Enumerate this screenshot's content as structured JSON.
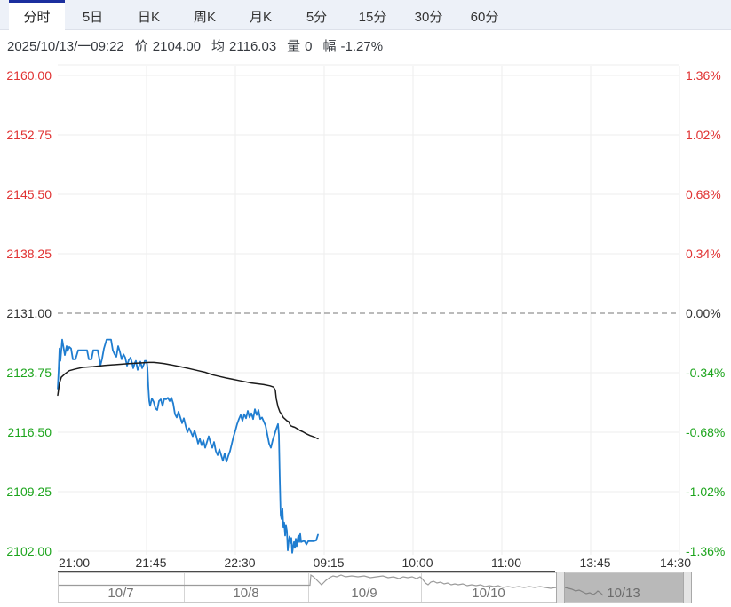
{
  "tab_bar": {
    "tabs": [
      {
        "label": "分时",
        "active": true
      },
      {
        "label": "5日",
        "active": false
      },
      {
        "label": "日K",
        "active": false
      },
      {
        "label": "周K",
        "active": false
      },
      {
        "label": "月K",
        "active": false
      },
      {
        "label": "5分",
        "active": false
      },
      {
        "label": "15分",
        "active": false
      },
      {
        "label": "30分",
        "active": false
      },
      {
        "label": "60分",
        "active": false
      }
    ]
  },
  "status_bar": {
    "datetime": "2025/10/13/一09:22",
    "price_label": "价",
    "price": "2104.00",
    "avg_label": "均",
    "avg": "2116.03",
    "volume_label": "量",
    "volume": "0",
    "change_label": "幅",
    "change": "-1.27%"
  },
  "chart_data": {
    "type": "line",
    "title": "",
    "x_tick_labels": [
      "21:00",
      "21:45",
      "22:30",
      "09:15",
      "10:00",
      "11:00",
      "13:45",
      "14:30"
    ],
    "y_left_tick_labels": [
      "2160.00",
      "2152.75",
      "2145.50",
      "2138.25",
      "2131.00",
      "2123.75",
      "2116.50",
      "2109.25",
      "2102.00"
    ],
    "y_left_tick_values": [
      2160.0,
      2152.75,
      2145.5,
      2138.25,
      2131.0,
      2123.75,
      2116.5,
      2109.25,
      2102.0
    ],
    "y_right_tick_labels": [
      "1.36%",
      "1.02%",
      "0.68%",
      "0.34%",
      "0.00%",
      "-0.34%",
      "-0.68%",
      "-1.02%",
      "-1.36%"
    ],
    "ylim": [
      2102,
      2160
    ],
    "baseline_value": 2131.0,
    "grid": true,
    "legend": "none",
    "x_unit": "plot-pixel-offset (time axis is session-compressed, 0 = 21:00, 700 = 14:30)",
    "colors": {
      "above_baseline": "#e03232",
      "below_baseline": "#1ea51e",
      "neutral": "#333333",
      "price_line": "#1f7dd0",
      "avg_line": "#1b1b1b",
      "grid_line": "#ededed",
      "baseline_dash": "#777777"
    },
    "series": [
      {
        "name": "price",
        "color": "#1f7dd0",
        "width": 1.8,
        "points": [
          [
            0,
            2121.8
          ],
          [
            1,
            2124.0
          ],
          [
            2,
            2126.7
          ],
          [
            3,
            2125.2
          ],
          [
            5,
            2127.8
          ],
          [
            8,
            2125.9
          ],
          [
            10,
            2127.0
          ],
          [
            11,
            2126.4
          ],
          [
            13,
            2126.9
          ],
          [
            15,
            2126.7
          ],
          [
            17,
            2125.4
          ],
          [
            20,
            2125.4
          ],
          [
            23,
            2126.5
          ],
          [
            26,
            2126.5
          ],
          [
            30,
            2126.5
          ],
          [
            33,
            2126.5
          ],
          [
            35,
            2125.4
          ],
          [
            38,
            2125.4
          ],
          [
            40,
            2126.5
          ],
          [
            43,
            2126.5
          ],
          [
            45,
            2126.5
          ],
          [
            47,
            2125.4
          ],
          [
            48,
            2124.6
          ],
          [
            50,
            2125.5
          ],
          [
            52,
            2126.7
          ],
          [
            55,
            2127.8
          ],
          [
            58,
            2127.8
          ],
          [
            60,
            2127.8
          ],
          [
            62,
            2126.5
          ],
          [
            64,
            2126.0
          ],
          [
            66,
            2125.7
          ],
          [
            68,
            2127.0
          ],
          [
            70,
            2126.3
          ],
          [
            72,
            2125.4
          ],
          [
            74,
            2126.0
          ],
          [
            76,
            2125.6
          ],
          [
            78,
            2124.6
          ],
          [
            80,
            2125.3
          ],
          [
            82,
            2125.6
          ],
          [
            84,
            2124.8
          ],
          [
            85,
            2124.3
          ],
          [
            87,
            2125.0
          ],
          [
            88,
            2125.2
          ],
          [
            90,
            2124.1
          ],
          [
            92,
            2124.7
          ],
          [
            93,
            2125.1
          ],
          [
            95,
            2124.3
          ],
          [
            97,
            2124.8
          ],
          [
            98,
            2125.2
          ],
          [
            100,
            2125.2
          ],
          [
            101,
            2124.4
          ],
          [
            102,
            2122.0
          ],
          [
            103,
            2120.3
          ],
          [
            104,
            2119.7
          ],
          [
            106,
            2120.6
          ],
          [
            108,
            2120.2
          ],
          [
            110,
            2119.4
          ],
          [
            112,
            2119.2
          ],
          [
            114,
            2120.3
          ],
          [
            116,
            2120.5
          ],
          [
            118,
            2119.7
          ],
          [
            120,
            2120.6
          ],
          [
            122,
            2120.5
          ],
          [
            124,
            2120.7
          ],
          [
            126,
            2120.3
          ],
          [
            128,
            2120.7
          ],
          [
            130,
            2120.0
          ],
          [
            132,
            2118.7
          ],
          [
            134,
            2118.3
          ],
          [
            136,
            2119.0
          ],
          [
            138,
            2118.3
          ],
          [
            140,
            2117.6
          ],
          [
            142,
            2118.2
          ],
          [
            144,
            2117.3
          ],
          [
            146,
            2116.5
          ],
          [
            148,
            2117.0
          ],
          [
            150,
            2116.5
          ],
          [
            152,
            2116.0
          ],
          [
            154,
            2116.7
          ],
          [
            156,
            2116.0
          ],
          [
            158,
            2115.1
          ],
          [
            160,
            2115.7
          ],
          [
            162,
            2114.9
          ],
          [
            164,
            2115.5
          ],
          [
            166,
            2114.6
          ],
          [
            168,
            2115.3
          ],
          [
            170,
            2116.0
          ],
          [
            172,
            2115.2
          ],
          [
            174,
            2114.6
          ],
          [
            176,
            2115.3
          ],
          [
            178,
            2114.2
          ],
          [
            180,
            2113.7
          ],
          [
            182,
            2114.4
          ],
          [
            184,
            2113.7
          ],
          [
            186,
            2113.0
          ],
          [
            188,
            2113.9
          ],
          [
            190,
            2112.9
          ],
          [
            192,
            2113.6
          ],
          [
            194,
            2114.2
          ],
          [
            196,
            2115.1
          ],
          [
            198,
            2116.0
          ],
          [
            200,
            2116.7
          ],
          [
            202,
            2117.5
          ],
          [
            204,
            2118.1
          ],
          [
            206,
            2118.6
          ],
          [
            208,
            2117.9
          ],
          [
            210,
            2118.7
          ],
          [
            212,
            2118.2
          ],
          [
            214,
            2119.1
          ],
          [
            216,
            2118.3
          ],
          [
            218,
            2118.8
          ],
          [
            220,
            2118.1
          ],
          [
            222,
            2119.3
          ],
          [
            224,
            2118.6
          ],
          [
            226,
            2119.2
          ],
          [
            228,
            2118.1
          ],
          [
            230,
            2118.3
          ],
          [
            232,
            2117.8
          ],
          [
            234,
            2117.3
          ],
          [
            236,
            2116.2
          ],
          [
            238,
            2115.1
          ],
          [
            240,
            2114.6
          ],
          [
            242,
            2115.5
          ],
          [
            244,
            2116.2
          ],
          [
            246,
            2116.9
          ],
          [
            248,
            2117.5
          ],
          [
            249,
            2116.2
          ],
          [
            250,
            2110.8
          ],
          [
            251,
            2106.4
          ],
          [
            252,
            2105.9
          ],
          [
            253,
            2107.2
          ],
          [
            254,
            2104.9
          ],
          [
            255,
            2105.5
          ],
          [
            256,
            2103.9
          ],
          [
            257,
            2105.1
          ],
          [
            258,
            2104.5
          ],
          [
            259,
            2102.1
          ],
          [
            260,
            2103.2
          ],
          [
            261,
            2103.8
          ],
          [
            262,
            2103.0
          ],
          [
            263,
            2103.6
          ],
          [
            264,
            2101.8
          ],
          [
            265,
            2102.5
          ],
          [
            266,
            2103.1
          ],
          [
            267,
            2102.4
          ],
          [
            268,
            2103.5
          ],
          [
            269,
            2102.6
          ],
          [
            270,
            2103.4
          ],
          [
            271,
            2103.9
          ],
          [
            272,
            2103.1
          ],
          [
            273,
            2104.1
          ],
          [
            274,
            2103.1
          ],
          [
            276,
            2103.2
          ],
          [
            278,
            2103.2
          ],
          [
            280,
            2102.8
          ],
          [
            282,
            2103.2
          ],
          [
            285,
            2103.2
          ],
          [
            288,
            2103.2
          ],
          [
            291,
            2103.3
          ],
          [
            293,
            2104.0
          ]
        ]
      },
      {
        "name": "average",
        "color": "#1b1b1b",
        "width": 1.5,
        "points": [
          [
            0,
            2121.0
          ],
          [
            2,
            2122.5
          ],
          [
            4,
            2123.2
          ],
          [
            8,
            2123.6
          ],
          [
            13,
            2124.0
          ],
          [
            20,
            2124.2
          ],
          [
            28,
            2124.4
          ],
          [
            40,
            2124.5
          ],
          [
            53,
            2124.65
          ],
          [
            67,
            2124.75
          ],
          [
            80,
            2124.85
          ],
          [
            95,
            2124.95
          ],
          [
            103,
            2125.0
          ],
          [
            108,
            2125.0
          ],
          [
            113,
            2124.95
          ],
          [
            120,
            2124.85
          ],
          [
            128,
            2124.7
          ],
          [
            135,
            2124.55
          ],
          [
            142,
            2124.4
          ],
          [
            150,
            2124.2
          ],
          [
            158,
            2124.0
          ],
          [
            166,
            2123.8
          ],
          [
            174,
            2123.5
          ],
          [
            182,
            2123.3
          ],
          [
            190,
            2123.1
          ],
          [
            197,
            2122.95
          ],
          [
            204,
            2122.8
          ],
          [
            211,
            2122.65
          ],
          [
            218,
            2122.5
          ],
          [
            225,
            2122.4
          ],
          [
            232,
            2122.3
          ],
          [
            239,
            2122.15
          ],
          [
            243,
            2122.0
          ],
          [
            245,
            2121.6
          ],
          [
            246,
            2120.6
          ],
          [
            248,
            2119.6
          ],
          [
            250,
            2119.0
          ],
          [
            252,
            2118.7
          ],
          [
            254,
            2118.3
          ],
          [
            256,
            2118.1
          ],
          [
            258,
            2117.9
          ],
          [
            260,
            2117.8
          ],
          [
            262,
            2117.3
          ],
          [
            264,
            2117.2
          ],
          [
            267,
            2117.1
          ],
          [
            270,
            2116.9
          ],
          [
            273,
            2116.7
          ],
          [
            276,
            2116.55
          ],
          [
            280,
            2116.3
          ],
          [
            284,
            2116.1
          ],
          [
            288,
            2115.95
          ],
          [
            291,
            2115.8
          ],
          [
            293,
            2115.7
          ]
        ]
      }
    ],
    "navigator": {
      "dates": [
        "10/7",
        "10/8",
        "10/9",
        "10/10",
        "10/13"
      ],
      "selected_date": "10/13",
      "spark_color": "#9b9b9b",
      "spark_points": [
        [
          0,
          13.5
        ],
        [
          283,
          13.5
        ],
        [
          284,
          2
        ],
        [
          287,
          4
        ],
        [
          290,
          7
        ],
        [
          293,
          10
        ],
        [
          296,
          13
        ],
        [
          298,
          11
        ],
        [
          301,
          8
        ],
        [
          305,
          5
        ],
        [
          309,
          3
        ],
        [
          313,
          4
        ],
        [
          318,
          2
        ],
        [
          323,
          4
        ],
        [
          330,
          3
        ],
        [
          337,
          4
        ],
        [
          344,
          3
        ],
        [
          351,
          5
        ],
        [
          358,
          4
        ],
        [
          365,
          3
        ],
        [
          371,
          5
        ],
        [
          377,
          4
        ],
        [
          383,
          6
        ],
        [
          388,
          4
        ],
        [
          393,
          5
        ],
        [
          398,
          4
        ],
        [
          403,
          6
        ],
        [
          407,
          4
        ],
        [
          410,
          7
        ],
        [
          413,
          11
        ],
        [
          416,
          13
        ],
        [
          419,
          10
        ],
        [
          422,
          9
        ],
        [
          426,
          11
        ],
        [
          430,
          10
        ],
        [
          434,
          12
        ],
        [
          438,
          11
        ],
        [
          442,
          13
        ],
        [
          446,
          12
        ],
        [
          450,
          13
        ],
        [
          455,
          12
        ],
        [
          460,
          14
        ],
        [
          465,
          13
        ],
        [
          470,
          14
        ],
        [
          475,
          13
        ],
        [
          480,
          15
        ],
        [
          485,
          14
        ],
        [
          490,
          15
        ],
        [
          495,
          14
        ],
        [
          500,
          16
        ],
        [
          506,
          15
        ],
        [
          512,
          16
        ],
        [
          518,
          15
        ],
        [
          524,
          16
        ],
        [
          530,
          15
        ],
        [
          536,
          16
        ],
        [
          542,
          15
        ],
        [
          548,
          16
        ],
        [
          554,
          17
        ],
        [
          560,
          16
        ],
        [
          565,
          17
        ],
        [
          570,
          16
        ],
        [
          574,
          17
        ],
        [
          578,
          18
        ],
        [
          582,
          20
        ],
        [
          586,
          19
        ],
        [
          590,
          21
        ],
        [
          594,
          23
        ],
        [
          598,
          22
        ],
        [
          602,
          24
        ],
        [
          605,
          22
        ],
        [
          607,
          20
        ],
        [
          610,
          22
        ],
        [
          613,
          25
        ]
      ]
    }
  }
}
